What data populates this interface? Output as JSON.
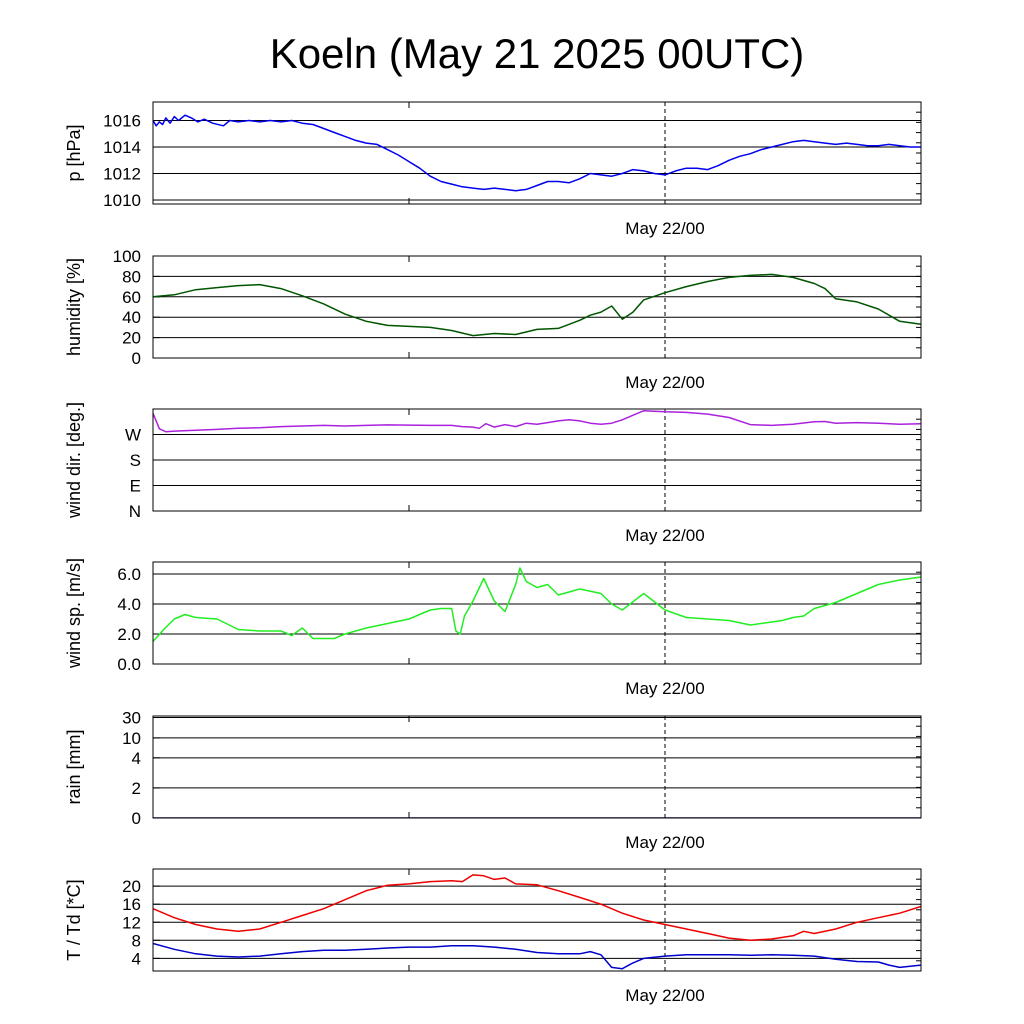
{
  "title": "Koeln (May 21 2025 00UTC)",
  "colors": {
    "grid": "#000000",
    "marker": "#000000"
  },
  "chart_data": [
    {
      "type": "line",
      "ylabel": "p [hPa]",
      "xtick_label": "May 22/00",
      "ylim": [
        1009.7,
        1017.4
      ],
      "yticks": [
        1010,
        1012,
        1014,
        1016
      ],
      "ytick_labels": [
        "1010",
        "1012",
        "1014",
        "1016"
      ],
      "xlim": [
        0,
        36
      ],
      "series": [
        {
          "color": "#0000ee",
          "x": [
            0,
            0.15,
            0.3,
            0.45,
            0.6,
            0.8,
            1.0,
            1.2,
            1.5,
            1.8,
            2.1,
            2.4,
            2.8,
            3.3,
            3.6,
            4.0,
            4.5,
            5.0,
            5.5,
            6.0,
            6.5,
            7.0,
            7.5,
            8.0,
            8.5,
            9.0,
            9.5,
            10.0,
            10.5,
            11.0,
            11.5,
            12.0,
            12.5,
            13.0,
            13.5,
            14.0,
            14.5,
            15.0,
            15.5,
            16.0,
            16.5,
            17.0,
            17.5,
            18.0,
            18.5,
            19.0,
            19.5,
            20.0,
            20.5,
            21.0,
            21.5,
            22.0,
            22.5,
            23.0,
            23.5,
            24.0,
            24.5,
            25.0,
            25.5,
            26.0,
            26.5,
            27.0,
            27.5,
            28.0,
            28.5,
            29.0,
            29.5,
            30.0,
            30.5,
            31.0,
            31.5,
            32.0,
            32.5,
            33.0,
            33.5,
            34.0,
            34.5,
            35.0,
            35.5,
            36.0
          ],
          "y": [
            1016.0,
            1015.6,
            1015.9,
            1015.7,
            1016.2,
            1015.8,
            1016.3,
            1016.0,
            1016.4,
            1016.2,
            1015.9,
            1016.1,
            1015.8,
            1015.6,
            1016.0,
            1015.9,
            1016.0,
            1015.9,
            1016.0,
            1015.9,
            1016.0,
            1015.8,
            1015.7,
            1015.4,
            1015.1,
            1014.8,
            1014.5,
            1014.3,
            1014.2,
            1013.8,
            1013.4,
            1012.9,
            1012.4,
            1011.8,
            1011.4,
            1011.2,
            1011.0,
            1010.9,
            1010.8,
            1010.9,
            1010.8,
            1010.7,
            1010.8,
            1011.1,
            1011.4,
            1011.4,
            1011.3,
            1011.6,
            1012.0,
            1011.9,
            1011.8,
            1012.0,
            1012.3,
            1012.2,
            1012.0,
            1011.9,
            1012.2,
            1012.4,
            1012.4,
            1012.3,
            1012.6,
            1013.0,
            1013.3,
            1013.5,
            1013.8,
            1014.0,
            1014.2,
            1014.4,
            1014.5,
            1014.4,
            1014.3,
            1014.2,
            1014.3,
            1014.2,
            1014.1,
            1014.1,
            1014.2,
            1014.1,
            1014.0,
            1014.0
          ]
        }
      ]
    },
    {
      "type": "line",
      "ylabel": "humidity [%]",
      "xtick_label": "May 22/00",
      "ylim": [
        0,
        100
      ],
      "yticks": [
        0,
        20,
        40,
        60,
        80,
        100
      ],
      "ytick_labels": [
        "0",
        "20",
        "40",
        "60",
        "80",
        "100"
      ],
      "xlim": [
        0,
        36
      ],
      "series": [
        {
          "color": "#005500",
          "x": [
            0,
            1,
            2,
            3,
            4,
            5,
            6,
            7,
            8,
            9,
            10,
            11,
            12,
            13,
            14,
            15,
            16,
            17,
            18,
            19,
            20,
            20.5,
            21,
            21.5,
            22,
            22.5,
            23,
            24,
            25,
            26,
            27,
            28,
            29,
            30,
            31,
            31.5,
            32,
            33,
            34,
            35,
            36
          ],
          "y": [
            60,
            62,
            67,
            69,
            71,
            72,
            68,
            61,
            53,
            43,
            36,
            32,
            31,
            30,
            27,
            22,
            24,
            23,
            28,
            29,
            37,
            42,
            45,
            51,
            38,
            45,
            57,
            64,
            70,
            75,
            79,
            81,
            82,
            79,
            73,
            68,
            58,
            55,
            48,
            36,
            33
          ]
        }
      ]
    },
    {
      "type": "line",
      "ylabel": "wind dir. [deg.]",
      "xtick_label": "May 22/00",
      "ylim": [
        0,
        360
      ],
      "yticks": [
        0,
        90,
        180,
        270
      ],
      "ytick_labels": [
        "N",
        "E",
        "S",
        "W"
      ],
      "xlim": [
        0,
        36
      ],
      "series": [
        {
          "color": "#aa22dd",
          "x": [
            0,
            0.3,
            0.6,
            1,
            2,
            3,
            4,
            5,
            6,
            7,
            8,
            9,
            10,
            11,
            12,
            13,
            14,
            14.5,
            15,
            15.3,
            15.6,
            16,
            16.5,
            17,
            17.5,
            18,
            18.5,
            19,
            19.5,
            20,
            20.5,
            21,
            21.5,
            22,
            23,
            24,
            25,
            26,
            27,
            28,
            29,
            30,
            31,
            31.5,
            32,
            33,
            34,
            35,
            36
          ],
          "y": [
            345,
            290,
            280,
            282,
            285,
            288,
            292,
            294,
            298,
            300,
            302,
            300,
            302,
            304,
            303,
            302,
            302,
            298,
            296,
            292,
            308,
            296,
            305,
            298,
            310,
            306,
            312,
            318,
            322,
            318,
            310,
            306,
            310,
            322,
            354,
            350,
            348,
            342,
            330,
            305,
            302,
            306,
            315,
            316,
            310,
            312,
            310,
            306,
            308
          ]
        }
      ]
    },
    {
      "type": "line",
      "ylabel": "wind sp. [m/s]",
      "xtick_label": "May 22/00",
      "ylim": [
        0,
        6.8
      ],
      "yticks": [
        0,
        2,
        4,
        6
      ],
      "ytick_labels": [
        "0.0",
        "2.0",
        "4.0",
        "6.0"
      ],
      "xlim": [
        0,
        36
      ],
      "series": [
        {
          "color": "#22ee22",
          "x": [
            0,
            0.5,
            1,
            1.5,
            2,
            3,
            4,
            5,
            6,
            6.5,
            7,
            7.5,
            8,
            8.5,
            9,
            10,
            11,
            12,
            12.5,
            13,
            13.5,
            14,
            14.2,
            14.4,
            14.6,
            15,
            15.5,
            16,
            16.5,
            17,
            17.2,
            17.5,
            18,
            18.5,
            19,
            20,
            21,
            21.5,
            22,
            23,
            24,
            25,
            26,
            27,
            28,
            29,
            29.5,
            30,
            30.5,
            31,
            32,
            33,
            34,
            35,
            36
          ],
          "y": [
            1.5,
            2.3,
            3.0,
            3.3,
            3.1,
            3.0,
            2.3,
            2.2,
            2.2,
            1.9,
            2.4,
            1.7,
            1.7,
            1.7,
            2.0,
            2.4,
            2.7,
            3.0,
            3.3,
            3.6,
            3.7,
            3.7,
            2.2,
            2.0,
            3.2,
            4.2,
            5.7,
            4.2,
            3.5,
            5.3,
            6.4,
            5.5,
            5.1,
            5.3,
            4.6,
            5.0,
            4.7,
            4.0,
            3.6,
            4.7,
            3.6,
            3.1,
            3.0,
            2.9,
            2.6,
            2.8,
            2.9,
            3.1,
            3.2,
            3.7,
            4.1,
            4.7,
            5.3,
            5.6,
            5.8
          ]
        }
      ]
    },
    {
      "type": "line",
      "ylabel": "rain [mm]",
      "xtick_label": "May 22/00",
      "yscale": "nonlinear",
      "yticks": [
        0,
        2,
        4,
        10,
        30
      ],
      "ytick_labels": [
        "0",
        "2",
        "4",
        "10",
        "30"
      ],
      "xlim": [
        0,
        36
      ],
      "series": [
        {
          "color": "#000088",
          "x": [
            0,
            36
          ],
          "y": [
            0,
            0
          ]
        }
      ]
    },
    {
      "type": "line",
      "ylabel": "T / Td [*C]",
      "xtick_label": "May 22/00",
      "ylim": [
        1.2,
        23.8
      ],
      "yticks": [
        4,
        8,
        12,
        16,
        20
      ],
      "ytick_labels": [
        "4",
        "8",
        "12",
        "16",
        "20"
      ],
      "xlim": [
        0,
        36
      ],
      "series": [
        {
          "color": "#ee0000",
          "x": [
            0,
            1,
            2,
            3,
            4,
            5,
            6,
            7,
            8,
            9,
            10,
            11,
            12,
            13,
            14,
            14.5,
            15,
            15.5,
            16,
            16.5,
            17,
            18,
            19,
            20,
            21,
            22,
            23,
            24,
            25,
            26,
            27,
            28,
            29,
            30,
            30.5,
            31,
            32,
            33,
            34,
            35,
            36
          ],
          "y": [
            15,
            13,
            11.5,
            10.5,
            10,
            10.5,
            12,
            13.5,
            15,
            17,
            19,
            20.2,
            20.5,
            21,
            21.2,
            21,
            22.5,
            22.3,
            21.5,
            21.8,
            20.5,
            20.3,
            19,
            17.5,
            16,
            14,
            12.5,
            11.5,
            10.5,
            9.5,
            8.5,
            8,
            8.3,
            9,
            10,
            9.5,
            10.5,
            12,
            13,
            14,
            15.5
          ]
        },
        {
          "color": "#0000cc",
          "x": [
            0,
            1,
            2,
            3,
            4,
            5,
            6,
            7,
            8,
            9,
            10,
            11,
            12,
            13,
            14,
            15,
            16,
            17,
            18,
            19,
            20,
            20.5,
            21,
            21.5,
            22,
            22.5,
            23,
            24,
            25,
            26,
            27,
            28,
            29,
            30,
            31,
            32,
            33,
            34,
            34.5,
            35,
            36
          ],
          "y": [
            7.3,
            6,
            5,
            4.5,
            4.3,
            4.5,
            5,
            5.5,
            5.8,
            5.8,
            6,
            6.3,
            6.5,
            6.5,
            6.8,
            6.8,
            6.5,
            6,
            5.3,
            5,
            5,
            5.5,
            4.8,
            2,
            1.7,
            3,
            4,
            4.5,
            4.8,
            4.8,
            4.8,
            4.7,
            4.8,
            4.7,
            4.5,
            3.8,
            3.3,
            3.2,
            2.5,
            2.0,
            2.5
          ]
        }
      ]
    }
  ]
}
